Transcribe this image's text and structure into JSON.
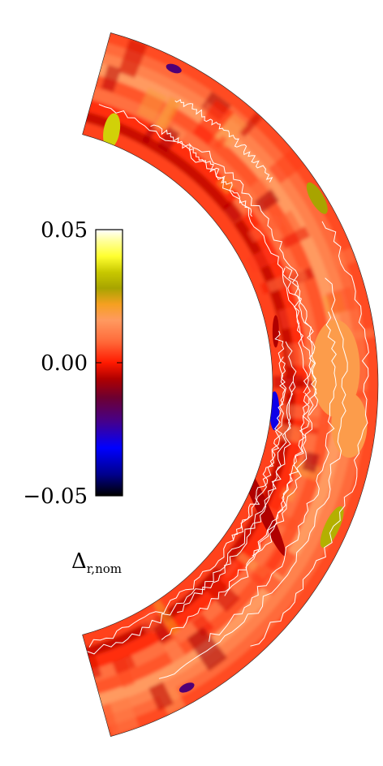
{
  "chart_data": {
    "type": "heatmap",
    "geometry": "meridional half-annulus (spherical shell slice)",
    "colorbar": {
      "label_main": "Δ",
      "label_sub": "r,nom",
      "vmin": -0.05,
      "vmax": 0.05,
      "ticks": [
        {
          "value": 0.05,
          "label": "0.05"
        },
        {
          "value": 0.0,
          "label": "0.00"
        },
        {
          "value": -0.05,
          "label": "−0.05"
        }
      ],
      "stops": [
        {
          "value": -0.05,
          "color": "#000000"
        },
        {
          "value": -0.042,
          "color": "#00008c"
        },
        {
          "value": -0.032,
          "color": "#0000ff"
        },
        {
          "value": -0.022,
          "color": "#46008a"
        },
        {
          "value": -0.013,
          "color": "#6e0030"
        },
        {
          "value": -0.006,
          "color": "#b00000"
        },
        {
          "value": 0.0,
          "color": "#ff1a00"
        },
        {
          "value": 0.008,
          "color": "#ff6a3a"
        },
        {
          "value": 0.016,
          "color": "#ff9a60"
        },
        {
          "value": 0.022,
          "color": "#f5a020"
        },
        {
          "value": 0.028,
          "color": "#a8a400"
        },
        {
          "value": 0.034,
          "color": "#c8c800"
        },
        {
          "value": 0.04,
          "color": "#ffff30"
        },
        {
          "value": 0.046,
          "color": "#ffffa0"
        },
        {
          "value": 0.05,
          "color": "#ffffff"
        }
      ]
    },
    "field_bands": [
      {
        "r_min": 0.0,
        "r_max": 0.12,
        "value": 0.004
      },
      {
        "r_min": 0.12,
        "r_max": 0.22,
        "value": -0.004
      },
      {
        "r_min": 0.22,
        "r_max": 0.34,
        "value": 0.002
      },
      {
        "r_min": 0.34,
        "r_max": 0.46,
        "value": 0.009
      },
      {
        "r_min": 0.46,
        "r_max": 0.58,
        "value": 0.006
      },
      {
        "r_min": 0.58,
        "r_max": 0.7,
        "value": 0.016
      },
      {
        "r_min": 0.7,
        "r_max": 0.8,
        "value": 0.012
      },
      {
        "r_min": 0.8,
        "r_max": 0.9,
        "value": 0.008
      },
      {
        "r_min": 0.9,
        "r_max": 1.0,
        "value": 0.005
      }
    ],
    "features": [
      {
        "name": "blue-blob-inner-equator",
        "value": -0.03
      },
      {
        "name": "yellow-patch-upper-left",
        "value": 0.035
      },
      {
        "name": "yellow-streak-outer-upper",
        "value": 0.028
      },
      {
        "name": "yellow-streak-outer-lower",
        "value": 0.03
      },
      {
        "name": "dark-patch-top",
        "value": -0.02
      },
      {
        "name": "dark-patch-bottom",
        "value": -0.02
      },
      {
        "name": "orange-cells-equator",
        "value": 0.018
      },
      {
        "name": "dark-streak-mid-lower",
        "value": -0.006
      }
    ]
  }
}
